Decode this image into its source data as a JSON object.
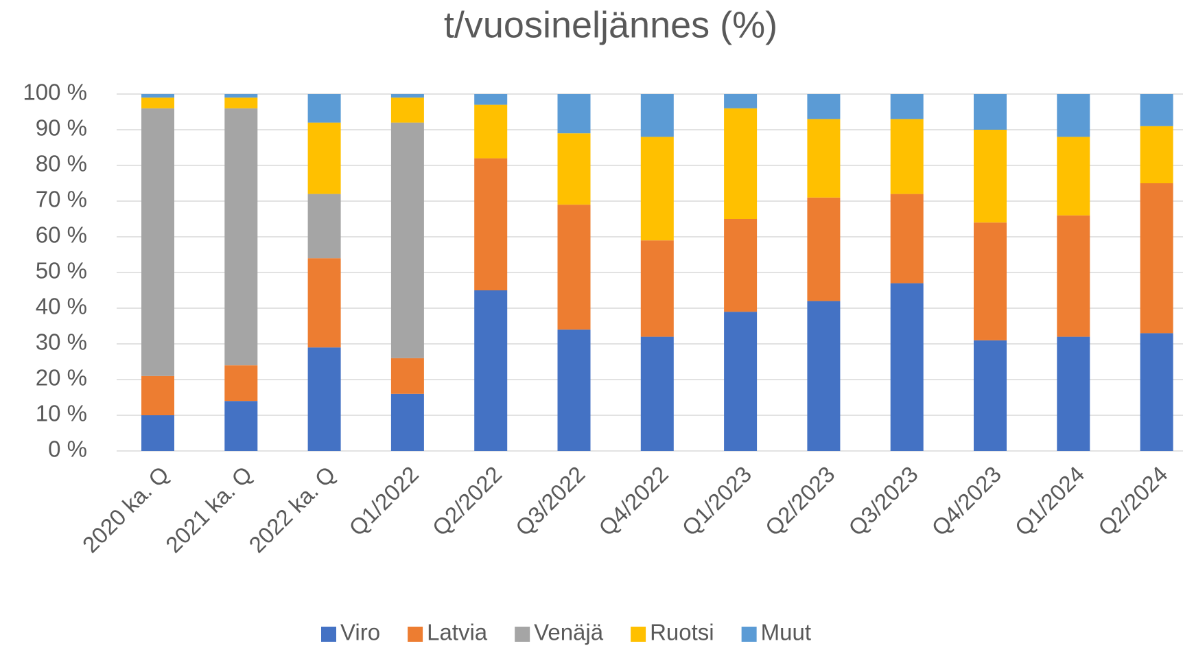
{
  "chart_data": {
    "type": "stacked_bar",
    "title": "t/vuosineljännes (%)",
    "categories": [
      "2020 ka. Q",
      "2021 ka. Q",
      "2022 ka. Q",
      "Q1/2022",
      "Q2/2022",
      "Q3/2022",
      "Q4/2022",
      "Q1/2023",
      "Q2/2023",
      "Q3/2023",
      "Q4/2023",
      "Q1/2024",
      "Q2/2024"
    ],
    "series": [
      {
        "name": "Viro",
        "color": "#4472c4",
        "values": [
          10,
          14,
          29,
          16,
          45,
          34,
          32,
          39,
          42,
          47,
          31,
          32,
          33
        ]
      },
      {
        "name": "Latvia",
        "color": "#ed7d31",
        "values": [
          11,
          10,
          25,
          10,
          37,
          35,
          27,
          26,
          29,
          25,
          33,
          34,
          42
        ]
      },
      {
        "name": "Venäjä",
        "color": "#a5a5a5",
        "values": [
          75,
          72,
          18,
          66,
          0,
          0,
          0,
          0,
          0,
          0,
          0,
          0,
          0
        ]
      },
      {
        "name": "Ruotsi",
        "color": "#ffc000",
        "values": [
          3,
          3,
          20,
          7,
          15,
          20,
          29,
          31,
          22,
          21,
          26,
          22,
          16
        ]
      },
      {
        "name": "Muut",
        "color": "#5b9bd5",
        "values": [
          1,
          1,
          8,
          1,
          3,
          11,
          12,
          4,
          7,
          7,
          10,
          12,
          9
        ]
      }
    ],
    "ylim": [
      0,
      100
    ],
    "yticks": [
      {
        "value": 0,
        "label": "0 %"
      },
      {
        "value": 10,
        "label": "10 %"
      },
      {
        "value": 20,
        "label": "20 %"
      },
      {
        "value": 30,
        "label": "30 %"
      },
      {
        "value": 40,
        "label": "40 %"
      },
      {
        "value": 50,
        "label": "50 %"
      },
      {
        "value": 60,
        "label": "60 %"
      },
      {
        "value": 70,
        "label": "70 %"
      },
      {
        "value": 80,
        "label": "80 %"
      },
      {
        "value": 90,
        "label": "90 %"
      },
      {
        "value": 100,
        "label": "100 %"
      }
    ],
    "grid": true,
    "legend": "bottom"
  }
}
